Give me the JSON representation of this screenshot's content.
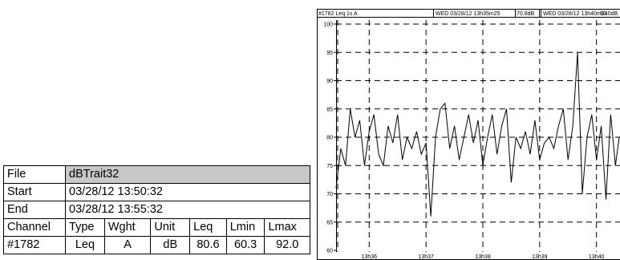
{
  "info_table": {
    "file_label": "File",
    "file_value": "dBTrait32",
    "start_label": "Start",
    "start_value": "03/28/12 13:50:32",
    "end_label": "End",
    "end_value": "03/28/12 13:55:32",
    "headers": [
      "Channel",
      "Type",
      "Wght",
      "Unit",
      "Leq",
      "Lmin",
      "Lmax"
    ],
    "row": [
      "#1782",
      "Leq",
      "A",
      "dB",
      "80.6",
      "60.3",
      "92.0"
    ],
    "shade_color": "#c8c8c8"
  },
  "chart_header": {
    "series_label": "#1782  Leq 1s  A",
    "cursor1_time": "WED 03/28/12 13h35m25",
    "cursor1_value": "70.8dB",
    "cursor2_time": "WED 03/28/12 13h40m24",
    "cursor2_value": "80.0dB"
  },
  "chart_data": {
    "type": "line",
    "title": "",
    "xlabel": "",
    "ylabel": "",
    "ylim": [
      60,
      100
    ],
    "xlim": [
      "13:35:25",
      "13:40:24"
    ],
    "y_ticks": [
      60,
      65,
      70,
      75,
      80,
      85,
      90,
      95,
      100
    ],
    "x_tick_labels": [
      "13h36",
      "13h37",
      "13h38",
      "13h39",
      "13h40"
    ],
    "x_tick_times": [
      "13:36:00",
      "13:37:00",
      "13:38:00",
      "13:39:00",
      "13:40:00"
    ],
    "cursor_times": [
      "13:35:25",
      "13:40:24"
    ],
    "grid": true,
    "series": [
      {
        "x": [
          "13:35:25",
          "13:35:30",
          "13:35:35",
          "13:35:40",
          "13:35:45",
          "13:35:50",
          "13:35:55",
          "13:36:00",
          "13:36:05",
          "13:36:10",
          "13:36:15",
          "13:36:20",
          "13:36:25",
          "13:36:30",
          "13:36:35",
          "13:36:40",
          "13:36:45",
          "13:36:50",
          "13:36:55",
          "13:37:00",
          "13:37:05",
          "13:37:10",
          "13:37:15",
          "13:37:20",
          "13:37:25",
          "13:37:30",
          "13:37:35",
          "13:37:40",
          "13:37:45",
          "13:37:50",
          "13:37:55",
          "13:38:00",
          "13:38:05",
          "13:38:10",
          "13:38:15",
          "13:38:20",
          "13:38:25",
          "13:38:30",
          "13:38:35",
          "13:38:40",
          "13:38:45",
          "13:38:50",
          "13:38:55",
          "13:39:00",
          "13:39:05",
          "13:39:10",
          "13:39:15",
          "13:39:20",
          "13:39:25",
          "13:39:30",
          "13:39:35",
          "13:39:40",
          "13:39:45",
          "13:39:50",
          "13:39:55",
          "13:40:00",
          "13:40:05",
          "13:40:10",
          "13:40:15",
          "13:40:20",
          "13:40:24"
        ],
        "values": [
          71,
          78,
          75,
          85,
          80,
          83,
          75,
          81,
          84,
          77,
          75,
          82,
          79,
          84,
          76,
          80,
          78,
          81,
          77,
          79,
          66,
          80,
          85,
          86,
          78,
          82,
          76,
          80,
          84,
          79,
          83,
          75,
          80,
          84,
          77,
          82,
          85,
          72,
          80,
          78,
          81,
          77,
          83,
          76,
          79,
          80,
          78,
          82,
          85,
          76,
          82,
          95,
          70,
          80,
          84,
          76,
          82,
          69,
          84,
          75,
          80
        ]
      }
    ]
  }
}
